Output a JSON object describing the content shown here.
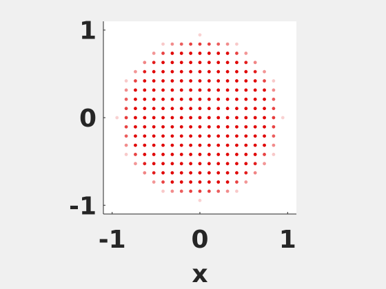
{
  "figure": {
    "background": "#f0f0f0"
  },
  "chart_data": {
    "type": "scatter",
    "title": "",
    "xlabel": "x",
    "ylabel": "",
    "xlim": [
      -1.1,
      1.1
    ],
    "ylim": [
      -1.1,
      1.1
    ],
    "x_ticks": [
      -1,
      0,
      1
    ],
    "y_ticks": [
      -1,
      0,
      1
    ],
    "x_tick_labels": [
      "-1",
      "0",
      "1"
    ],
    "y_tick_labels": [
      "-1",
      "0",
      "1"
    ],
    "grid": false,
    "legend": "none",
    "axes_background": "#ffffff",
    "axis_color": "#262626",
    "marker_color": "#e00000",
    "point_grid": {
      "spacing": 0.105,
      "x_offset": 0.0,
      "y_offset": 0.0,
      "fade_start_radius": 0.8,
      "outer_radius": 0.95
    }
  }
}
